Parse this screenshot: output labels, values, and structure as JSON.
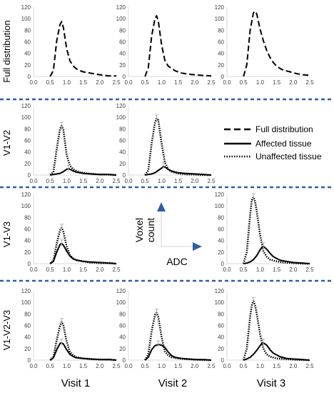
{
  "row_labels": [
    "Full distribution",
    "V1-V2",
    "V1-V3",
    "V1-V2-V3"
  ],
  "column_labels": [
    "Visit 1",
    "Visit 2",
    "Visit 3"
  ],
  "legend": {
    "full": "Full distribution",
    "affected": "Affected tissue",
    "unaffected": "Unaffected tissue"
  },
  "axes_inset": {
    "y_label_line1": "Voxel",
    "y_label_line2": "count",
    "x_label": "ADC"
  },
  "colors": {
    "separator": "#2e5fa3",
    "arrow": "#2e5fa3",
    "axis": "#d9d9d9",
    "line": "#000000",
    "errorbar": "#b0b0b0"
  },
  "chart_data": [
    {
      "type": "line",
      "row": 0,
      "col": 0,
      "xlim": [
        0,
        2.5
      ],
      "ylim": [
        0,
        120
      ],
      "xticks": [
        "0.0",
        "0.5",
        "1.0",
        "1.5",
        "2.0",
        "2.5"
      ],
      "yticks": [
        "0",
        "20",
        "40",
        "60",
        "80",
        "100",
        "120"
      ],
      "series": [
        {
          "name": "Full distribution",
          "style": "dashed",
          "x": [
            0.5,
            0.6,
            0.7,
            0.8,
            0.85,
            0.9,
            1.0,
            1.1,
            1.2,
            1.3,
            1.4,
            1.5,
            1.7,
            1.9,
            2.1,
            2.3,
            2.5
          ],
          "y": [
            0,
            10,
            62,
            90,
            95,
            85,
            48,
            27,
            18,
            13,
            10,
            8,
            6,
            4,
            2,
            1,
            1
          ]
        }
      ]
    },
    {
      "type": "line",
      "row": 0,
      "col": 1,
      "xlim": [
        0,
        2.5
      ],
      "ylim": [
        0,
        120
      ],
      "xticks": [
        "0.0",
        "0.5",
        "1.0",
        "1.5",
        "2.0",
        "2.5"
      ],
      "yticks": [
        "0",
        "20",
        "40",
        "60",
        "80",
        "100",
        "120"
      ],
      "series": [
        {
          "name": "Full distribution",
          "style": "dashed",
          "x": [
            0.5,
            0.6,
            0.7,
            0.8,
            0.85,
            0.9,
            1.0,
            1.1,
            1.2,
            1.4,
            1.6,
            1.8,
            2.0,
            2.2,
            2.5
          ],
          "y": [
            0,
            15,
            70,
            100,
            105,
            96,
            55,
            28,
            18,
            10,
            6,
            4,
            3,
            2,
            1
          ]
        }
      ]
    },
    {
      "type": "line",
      "row": 0,
      "col": 2,
      "xlim": [
        0,
        2.5
      ],
      "ylim": [
        0,
        120
      ],
      "xticks": [
        "0.0",
        "0.5",
        "1.0",
        "1.5",
        "2.0",
        "2.5"
      ],
      "yticks": [
        "0",
        "20",
        "40",
        "60",
        "80",
        "100",
        "120"
      ],
      "series": [
        {
          "name": "Full distribution",
          "style": "dashed",
          "x": [
            0.5,
            0.6,
            0.7,
            0.8,
            0.85,
            0.9,
            1.0,
            1.1,
            1.2,
            1.3,
            1.4,
            1.5,
            1.6,
            1.7,
            1.9,
            2.1,
            2.3,
            2.5
          ],
          "y": [
            0,
            20,
            80,
            110,
            113,
            108,
            82,
            62,
            45,
            33,
            24,
            18,
            14,
            11,
            8,
            5,
            3,
            2
          ]
        }
      ]
    },
    {
      "type": "line",
      "row": 1,
      "col": 0,
      "xlim": [
        0,
        2.5
      ],
      "ylim": [
        0,
        120
      ],
      "xticks": [
        "0.0",
        "0.5",
        "1.0",
        "1.5",
        "2.0",
        "2.5"
      ],
      "yticks": [
        "0",
        "20",
        "40",
        "60",
        "80",
        "100",
        "120"
      ],
      "series": [
        {
          "name": "Unaffected tissue",
          "style": "dotted",
          "x": [
            0.5,
            0.6,
            0.7,
            0.8,
            0.85,
            0.9,
            1.0,
            1.1,
            1.2,
            1.3,
            1.4,
            1.6,
            1.8,
            2.0,
            2.2,
            2.5
          ],
          "y": [
            0,
            5,
            45,
            80,
            85,
            78,
            35,
            16,
            10,
            7,
            5,
            3,
            2,
            1,
            1,
            0
          ]
        },
        {
          "name": "Affected tissue",
          "style": "solid",
          "x": [
            0.5,
            0.6,
            0.7,
            0.8,
            0.9,
            1.0,
            1.05,
            1.1,
            1.2,
            1.3,
            1.5,
            1.7,
            2.0,
            2.3,
            2.5
          ],
          "y": [
            0,
            1,
            2,
            3,
            6,
            10,
            11,
            10,
            7,
            5,
            3,
            2,
            1,
            1,
            0
          ]
        }
      ]
    },
    {
      "type": "line",
      "row": 1,
      "col": 1,
      "xlim": [
        0,
        2.5
      ],
      "ylim": [
        0,
        120
      ],
      "xticks": [
        "0.0",
        "0.5",
        "1.0",
        "1.5",
        "2.0",
        "2.5"
      ],
      "yticks": [
        "0",
        "20",
        "40",
        "60",
        "80",
        "100",
        "120"
      ],
      "series": [
        {
          "name": "Unaffected tissue",
          "style": "dotted",
          "x": [
            0.5,
            0.6,
            0.7,
            0.8,
            0.85,
            0.9,
            1.0,
            1.1,
            1.2,
            1.3,
            1.4,
            1.6,
            1.8,
            2.0,
            2.2,
            2.5
          ],
          "y": [
            0,
            8,
            55,
            90,
            98,
            95,
            55,
            22,
            10,
            6,
            4,
            2,
            1,
            1,
            0,
            0
          ]
        },
        {
          "name": "Affected tissue",
          "style": "solid",
          "x": [
            0.5,
            0.6,
            0.7,
            0.8,
            0.9,
            1.0,
            1.05,
            1.1,
            1.2,
            1.3,
            1.5,
            1.7,
            2.0,
            2.3,
            2.5
          ],
          "y": [
            0,
            1,
            2,
            4,
            8,
            12,
            15,
            14,
            10,
            7,
            4,
            3,
            2,
            1,
            0
          ]
        }
      ]
    },
    {
      "type": "line",
      "row": 2,
      "col": 0,
      "xlim": [
        0,
        2.5
      ],
      "ylim": [
        0,
        120
      ],
      "xticks": [
        "0.0",
        "0.5",
        "1.0",
        "1.5",
        "2.0",
        "2.5"
      ],
      "yticks": [
        "0",
        "20",
        "40",
        "60",
        "80",
        "100",
        "120"
      ],
      "series": [
        {
          "name": "Unaffected tissue",
          "style": "dotted",
          "x": [
            0.5,
            0.6,
            0.7,
            0.8,
            0.85,
            0.9,
            1.0,
            1.1,
            1.2,
            1.3,
            1.5,
            1.7,
            2.0,
            2.3,
            2.5
          ],
          "y": [
            0,
            5,
            35,
            58,
            62,
            55,
            30,
            15,
            9,
            6,
            4,
            2,
            1,
            1,
            0
          ]
        },
        {
          "name": "Affected tissue",
          "style": "solid",
          "x": [
            0.5,
            0.6,
            0.7,
            0.8,
            0.85,
            0.9,
            1.0,
            1.1,
            1.2,
            1.3,
            1.5,
            1.7,
            2.0,
            2.3,
            2.5
          ],
          "y": [
            0,
            4,
            20,
            33,
            35,
            32,
            22,
            13,
            8,
            6,
            4,
            3,
            2,
            1,
            0
          ]
        }
      ]
    },
    {
      "type": "line",
      "row": 2,
      "col": 2,
      "xlim": [
        0,
        2.5
      ],
      "ylim": [
        0,
        120
      ],
      "xticks": [
        "0.0",
        "0.5",
        "1.0",
        "1.5",
        "2.0",
        "2.5"
      ],
      "yticks": [
        "0",
        "20",
        "40",
        "60",
        "80",
        "100",
        "120"
      ],
      "series": [
        {
          "name": "Unaffected tissue",
          "style": "dotted",
          "x": [
            0.5,
            0.6,
            0.7,
            0.75,
            0.8,
            0.85,
            0.9,
            1.0,
            1.1,
            1.2,
            1.3,
            1.5,
            1.7,
            2.0,
            2.3,
            2.5
          ],
          "y": [
            0,
            20,
            85,
            110,
            115,
            108,
            90,
            50,
            22,
            12,
            7,
            4,
            2,
            1,
            0,
            0
          ]
        },
        {
          "name": "Affected tissue",
          "style": "solid",
          "x": [
            0.5,
            0.6,
            0.7,
            0.8,
            0.9,
            1.0,
            1.05,
            1.1,
            1.2,
            1.3,
            1.4,
            1.6,
            1.8,
            2.0,
            2.3,
            2.5
          ],
          "y": [
            0,
            1,
            3,
            7,
            14,
            24,
            28,
            30,
            25,
            18,
            12,
            6,
            4,
            2,
            1,
            0
          ]
        }
      ]
    },
    {
      "type": "line",
      "row": 3,
      "col": 0,
      "xlim": [
        0,
        2.5
      ],
      "ylim": [
        0,
        120
      ],
      "xticks": [
        "0.0",
        "0.5",
        "1.0",
        "1.5",
        "2.0",
        "2.5"
      ],
      "yticks": [
        "0",
        "20",
        "40",
        "60",
        "80",
        "100",
        "120"
      ],
      "series": [
        {
          "name": "Unaffected tissue",
          "style": "dotted",
          "x": [
            0.5,
            0.6,
            0.7,
            0.8,
            0.85,
            0.9,
            1.0,
            1.1,
            1.2,
            1.3,
            1.5,
            1.7,
            2.0,
            2.3,
            2.5
          ],
          "y": [
            0,
            5,
            35,
            60,
            66,
            60,
            32,
            14,
            8,
            5,
            3,
            2,
            1,
            1,
            0
          ]
        },
        {
          "name": "Affected tissue",
          "style": "solid",
          "x": [
            0.5,
            0.6,
            0.7,
            0.8,
            0.85,
            0.9,
            1.0,
            1.1,
            1.2,
            1.3,
            1.5,
            1.7,
            2.0,
            2.3,
            2.5
          ],
          "y": [
            0,
            4,
            18,
            29,
            30,
            28,
            18,
            10,
            6,
            4,
            3,
            2,
            1,
            1,
            0
          ]
        }
      ]
    },
    {
      "type": "line",
      "row": 3,
      "col": 1,
      "xlim": [
        0,
        2.5
      ],
      "ylim": [
        0,
        120
      ],
      "xticks": [
        "0.0",
        "0.5",
        "1.0",
        "1.5",
        "2.0",
        "2.5"
      ],
      "yticks": [
        "0",
        "20",
        "40",
        "60",
        "80",
        "100",
        "120"
      ],
      "series": [
        {
          "name": "Unaffected tissue",
          "style": "dotted",
          "x": [
            0.5,
            0.6,
            0.7,
            0.8,
            0.85,
            0.9,
            1.0,
            1.1,
            1.2,
            1.3,
            1.5,
            1.7,
            2.0,
            2.3,
            2.5
          ],
          "y": [
            0,
            10,
            50,
            78,
            82,
            75,
            40,
            15,
            8,
            5,
            3,
            2,
            1,
            0,
            0
          ]
        },
        {
          "name": "Affected tissue",
          "style": "solid",
          "x": [
            0.5,
            0.6,
            0.7,
            0.8,
            0.9,
            1.0,
            1.1,
            1.2,
            1.3,
            1.4,
            1.6,
            1.8,
            2.0,
            2.3,
            2.5
          ],
          "y": [
            0,
            5,
            18,
            25,
            27,
            26,
            22,
            14,
            8,
            5,
            3,
            2,
            1,
            1,
            0
          ]
        }
      ]
    },
    {
      "type": "line",
      "row": 3,
      "col": 2,
      "xlim": [
        0,
        2.5
      ],
      "ylim": [
        0,
        120
      ],
      "xticks": [
        "0.0",
        "0.5",
        "1.0",
        "1.5",
        "2.0",
        "2.5"
      ],
      "yticks": [
        "0",
        "20",
        "40",
        "60",
        "80",
        "100",
        "120"
      ],
      "series": [
        {
          "name": "Unaffected tissue",
          "style": "dotted",
          "x": [
            0.5,
            0.6,
            0.7,
            0.75,
            0.8,
            0.85,
            0.9,
            1.0,
            1.1,
            1.2,
            1.3,
            1.5,
            1.7,
            2.0,
            2.3,
            2.5
          ],
          "y": [
            0,
            20,
            75,
            95,
            102,
            95,
            80,
            45,
            20,
            10,
            6,
            3,
            2,
            1,
            0,
            0
          ]
        },
        {
          "name": "Affected tissue",
          "style": "solid",
          "x": [
            0.5,
            0.6,
            0.7,
            0.8,
            0.9,
            1.0,
            1.05,
            1.1,
            1.2,
            1.3,
            1.4,
            1.6,
            1.8,
            2.0,
            2.3,
            2.5
          ],
          "y": [
            0,
            2,
            5,
            10,
            17,
            25,
            29,
            30,
            26,
            18,
            12,
            6,
            3,
            2,
            1,
            0
          ]
        }
      ]
    }
  ]
}
